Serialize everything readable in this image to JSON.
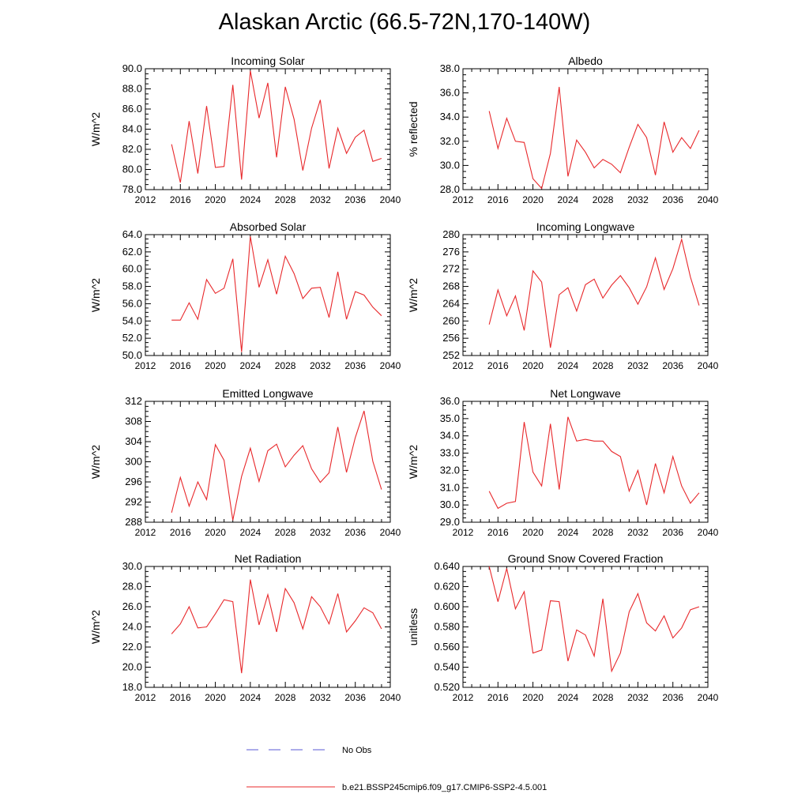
{
  "figure": {
    "title": "Alaskan Arctic (66.5-72N,170-140W)",
    "legend": [
      {
        "label": "No Obs",
        "color": "#5a5ad6",
        "style": "dashed"
      },
      {
        "label": "b.e21.BSSP245cmip6.f09_g17.CMIP6-SSP2-4.5.001",
        "color": "#e8282b",
        "style": "solid"
      }
    ]
  },
  "chart_data": [
    {
      "type": "line",
      "title": "Incoming Solar",
      "ylabel": "W/m^2",
      "xlim": [
        2012,
        2040
      ],
      "ylim": [
        78,
        90
      ],
      "xticks": [
        2012,
        2016,
        2020,
        2024,
        2028,
        2032,
        2036,
        2040
      ],
      "yticks": [
        "78.0",
        "80.0",
        "82.0",
        "84.0",
        "86.0",
        "88.0",
        "90.0"
      ],
      "x": [
        2015,
        2016,
        2017,
        2018,
        2019,
        2020,
        2021,
        2022,
        2023,
        2024,
        2025,
        2026,
        2027,
        2028,
        2029,
        2030,
        2031,
        2032,
        2033,
        2034,
        2035,
        2036,
        2037,
        2038,
        2039
      ],
      "series": [
        {
          "name": "b.e21.BSSP245cmip6.f09_g17.CMIP6-SSP2-4.5.001",
          "color": "#e8282b",
          "values": [
            82.5,
            78.7,
            84.8,
            79.6,
            86.3,
            80.2,
            80.3,
            88.4,
            79.0,
            89.8,
            85.1,
            88.6,
            81.2,
            88.2,
            85.0,
            79.9,
            84.1,
            86.9,
            80.1,
            84.1,
            81.6,
            83.2,
            83.9,
            80.8,
            81.1
          ]
        }
      ]
    },
    {
      "type": "line",
      "title": "Albedo",
      "ylabel": "% reflected",
      "xlim": [
        2012,
        2040
      ],
      "ylim": [
        28,
        38
      ],
      "xticks": [
        2012,
        2016,
        2020,
        2024,
        2028,
        2032,
        2036,
        2040
      ],
      "yticks": [
        "28.0",
        "30.0",
        "32.0",
        "34.0",
        "36.0",
        "38.0"
      ],
      "x": [
        2015,
        2016,
        2017,
        2018,
        2019,
        2020,
        2021,
        2022,
        2023,
        2024,
        2025,
        2026,
        2027,
        2028,
        2029,
        2030,
        2031,
        2032,
        2033,
        2034,
        2035,
        2036,
        2037,
        2038,
        2039
      ],
      "series": [
        {
          "name": "b.e21.BSSP245cmip6.f09_g17.CMIP6-SSP2-4.5.001",
          "color": "#e8282b",
          "values": [
            34.5,
            31.4,
            33.9,
            32.0,
            31.9,
            28.9,
            28.1,
            31.0,
            36.5,
            29.1,
            32.1,
            31.1,
            29.8,
            30.5,
            30.1,
            29.4,
            31.5,
            33.4,
            32.3,
            29.2,
            33.6,
            31.1,
            32.3,
            31.4,
            32.9
          ]
        }
      ]
    },
    {
      "type": "line",
      "title": "Absorbed Solar",
      "ylabel": "W/m^2",
      "xlim": [
        2012,
        2040
      ],
      "ylim": [
        50,
        64
      ],
      "xticks": [
        2012,
        2016,
        2020,
        2024,
        2028,
        2032,
        2036,
        2040
      ],
      "yticks": [
        "50.0",
        "52.0",
        "54.0",
        "56.0",
        "58.0",
        "60.0",
        "62.0",
        "64.0"
      ],
      "x": [
        2015,
        2016,
        2017,
        2018,
        2019,
        2020,
        2021,
        2022,
        2023,
        2024,
        2025,
        2026,
        2027,
        2028,
        2029,
        2030,
        2031,
        2032,
        2033,
        2034,
        2035,
        2036,
        2037,
        2038,
        2039
      ],
      "series": [
        {
          "name": "b.e21.BSSP245cmip6.f09_g17.CMIP6-SSP2-4.5.001",
          "color": "#e8282b",
          "values": [
            54.1,
            54.1,
            56.1,
            54.2,
            58.8,
            57.2,
            57.8,
            61.2,
            50.4,
            63.8,
            57.9,
            61.1,
            57.1,
            61.5,
            59.5,
            56.6,
            57.8,
            57.9,
            54.4,
            59.7,
            54.2,
            57.4,
            57.0,
            55.6,
            54.6
          ]
        }
      ]
    },
    {
      "type": "line",
      "title": "Incoming Longwave",
      "ylabel": "W/m^2",
      "xlim": [
        2012,
        2040
      ],
      "ylim": [
        252,
        280
      ],
      "xticks": [
        2012,
        2016,
        2020,
        2024,
        2028,
        2032,
        2036,
        2040
      ],
      "yticks": [
        "252",
        "256",
        "260",
        "264",
        "268",
        "272",
        "276",
        "280"
      ],
      "x": [
        2015,
        2016,
        2017,
        2018,
        2019,
        2020,
        2021,
        2022,
        2023,
        2024,
        2025,
        2026,
        2027,
        2028,
        2029,
        2030,
        2031,
        2032,
        2033,
        2034,
        2035,
        2036,
        2037,
        2038,
        2039
      ],
      "series": [
        {
          "name": "b.e21.BSSP245cmip6.f09_g17.CMIP6-SSP2-4.5.001",
          "color": "#e8282b",
          "values": [
            259.2,
            267.2,
            261.2,
            265.8,
            257.8,
            271.6,
            269.0,
            253.8,
            266.1,
            267.7,
            262.3,
            268.4,
            269.7,
            265.3,
            268.3,
            270.5,
            267.7,
            263.9,
            267.9,
            274.6,
            267.3,
            272.1,
            278.9,
            270.2,
            263.6
          ]
        }
      ]
    },
    {
      "type": "line",
      "title": "Emitted Longwave",
      "ylabel": "W/m^2",
      "xlim": [
        2012,
        2040
      ],
      "ylim": [
        288,
        312
      ],
      "xticks": [
        2012,
        2016,
        2020,
        2024,
        2028,
        2032,
        2036,
        2040
      ],
      "yticks": [
        "288",
        "292",
        "296",
        "300",
        "304",
        "308",
        "312"
      ],
      "x": [
        2015,
        2016,
        2017,
        2018,
        2019,
        2020,
        2021,
        2022,
        2023,
        2024,
        2025,
        2026,
        2027,
        2028,
        2029,
        2030,
        2031,
        2032,
        2033,
        2034,
        2035,
        2036,
        2037,
        2038,
        2039
      ],
      "series": [
        {
          "name": "b.e21.BSSP245cmip6.f09_g17.CMIP6-SSP2-4.5.001",
          "color": "#e8282b",
          "values": [
            289.9,
            296.9,
            291.2,
            296.0,
            292.5,
            303.4,
            300.3,
            288.4,
            297.1,
            302.7,
            296.1,
            302.2,
            303.5,
            299.0,
            301.3,
            303.2,
            298.6,
            295.9,
            297.8,
            306.9,
            297.9,
            304.8,
            310.1,
            300.1,
            294.5
          ]
        }
      ]
    },
    {
      "type": "line",
      "title": "Net Longwave",
      "ylabel": "W/m^2",
      "xlim": [
        2012,
        2040
      ],
      "ylim": [
        29,
        36
      ],
      "xticks": [
        2012,
        2016,
        2020,
        2024,
        2028,
        2032,
        2036,
        2040
      ],
      "yticks": [
        "29.0",
        "30.0",
        "31.0",
        "32.0",
        "33.0",
        "34.0",
        "35.0",
        "36.0"
      ],
      "x": [
        2015,
        2016,
        2017,
        2018,
        2019,
        2020,
        2021,
        2022,
        2023,
        2024,
        2025,
        2026,
        2027,
        2028,
        2029,
        2030,
        2031,
        2032,
        2033,
        2034,
        2035,
        2036,
        2037,
        2038,
        2039
      ],
      "series": [
        {
          "name": "b.e21.BSSP245cmip6.f09_g17.CMIP6-SSP2-4.5.001",
          "color": "#e8282b",
          "values": [
            30.8,
            29.8,
            30.1,
            30.2,
            34.8,
            31.9,
            31.1,
            34.7,
            30.9,
            35.1,
            33.7,
            33.8,
            33.7,
            33.7,
            33.1,
            32.8,
            30.8,
            32.0,
            30.0,
            32.4,
            30.7,
            32.8,
            31.1,
            30.1,
            30.7
          ]
        }
      ]
    },
    {
      "type": "line",
      "title": "Net Radiation",
      "ylabel": "W/m^2",
      "xlim": [
        2012,
        2040
      ],
      "ylim": [
        18,
        30
      ],
      "xticks": [
        2012,
        2016,
        2020,
        2024,
        2028,
        2032,
        2036,
        2040
      ],
      "yticks": [
        "18.0",
        "20.0",
        "22.0",
        "24.0",
        "26.0",
        "28.0",
        "30.0"
      ],
      "x": [
        2015,
        2016,
        2017,
        2018,
        2019,
        2020,
        2021,
        2022,
        2023,
        2024,
        2025,
        2026,
        2027,
        2028,
        2029,
        2030,
        2031,
        2032,
        2033,
        2034,
        2035,
        2036,
        2037,
        2038,
        2039
      ],
      "series": [
        {
          "name": "b.e21.BSSP245cmip6.f09_g17.CMIP6-SSP2-4.5.001",
          "color": "#e8282b",
          "values": [
            23.3,
            24.3,
            26.0,
            23.9,
            24.0,
            25.3,
            26.7,
            26.5,
            19.4,
            28.7,
            24.2,
            27.2,
            23.5,
            27.8,
            26.4,
            23.8,
            27.0,
            26.0,
            24.3,
            27.3,
            23.5,
            24.6,
            25.9,
            25.4,
            23.8
          ]
        }
      ]
    },
    {
      "type": "line",
      "title": "Ground Snow Covered Fraction",
      "ylabel": "unitless",
      "xlim": [
        2012,
        2040
      ],
      "ylim": [
        0.52,
        0.64
      ],
      "xticks": [
        2012,
        2016,
        2020,
        2024,
        2028,
        2032,
        2036,
        2040
      ],
      "yticks": [
        "0.520",
        "0.540",
        "0.560",
        "0.580",
        "0.600",
        "0.620",
        "0.640"
      ],
      "x": [
        2015,
        2016,
        2017,
        2018,
        2019,
        2020,
        2021,
        2022,
        2023,
        2024,
        2025,
        2026,
        2027,
        2028,
        2029,
        2030,
        2031,
        2032,
        2033,
        2034,
        2035,
        2036,
        2037,
        2038,
        2039
      ],
      "series": [
        {
          "name": "b.e21.BSSP245cmip6.f09_g17.CMIP6-SSP2-4.5.001",
          "color": "#e8282b",
          "values": [
            0.64,
            0.605,
            0.638,
            0.598,
            0.615,
            0.554,
            0.557,
            0.606,
            0.605,
            0.546,
            0.577,
            0.572,
            0.551,
            0.608,
            0.536,
            0.554,
            0.595,
            0.613,
            0.584,
            0.576,
            0.591,
            0.569,
            0.579,
            0.597,
            0.6
          ]
        }
      ]
    }
  ]
}
